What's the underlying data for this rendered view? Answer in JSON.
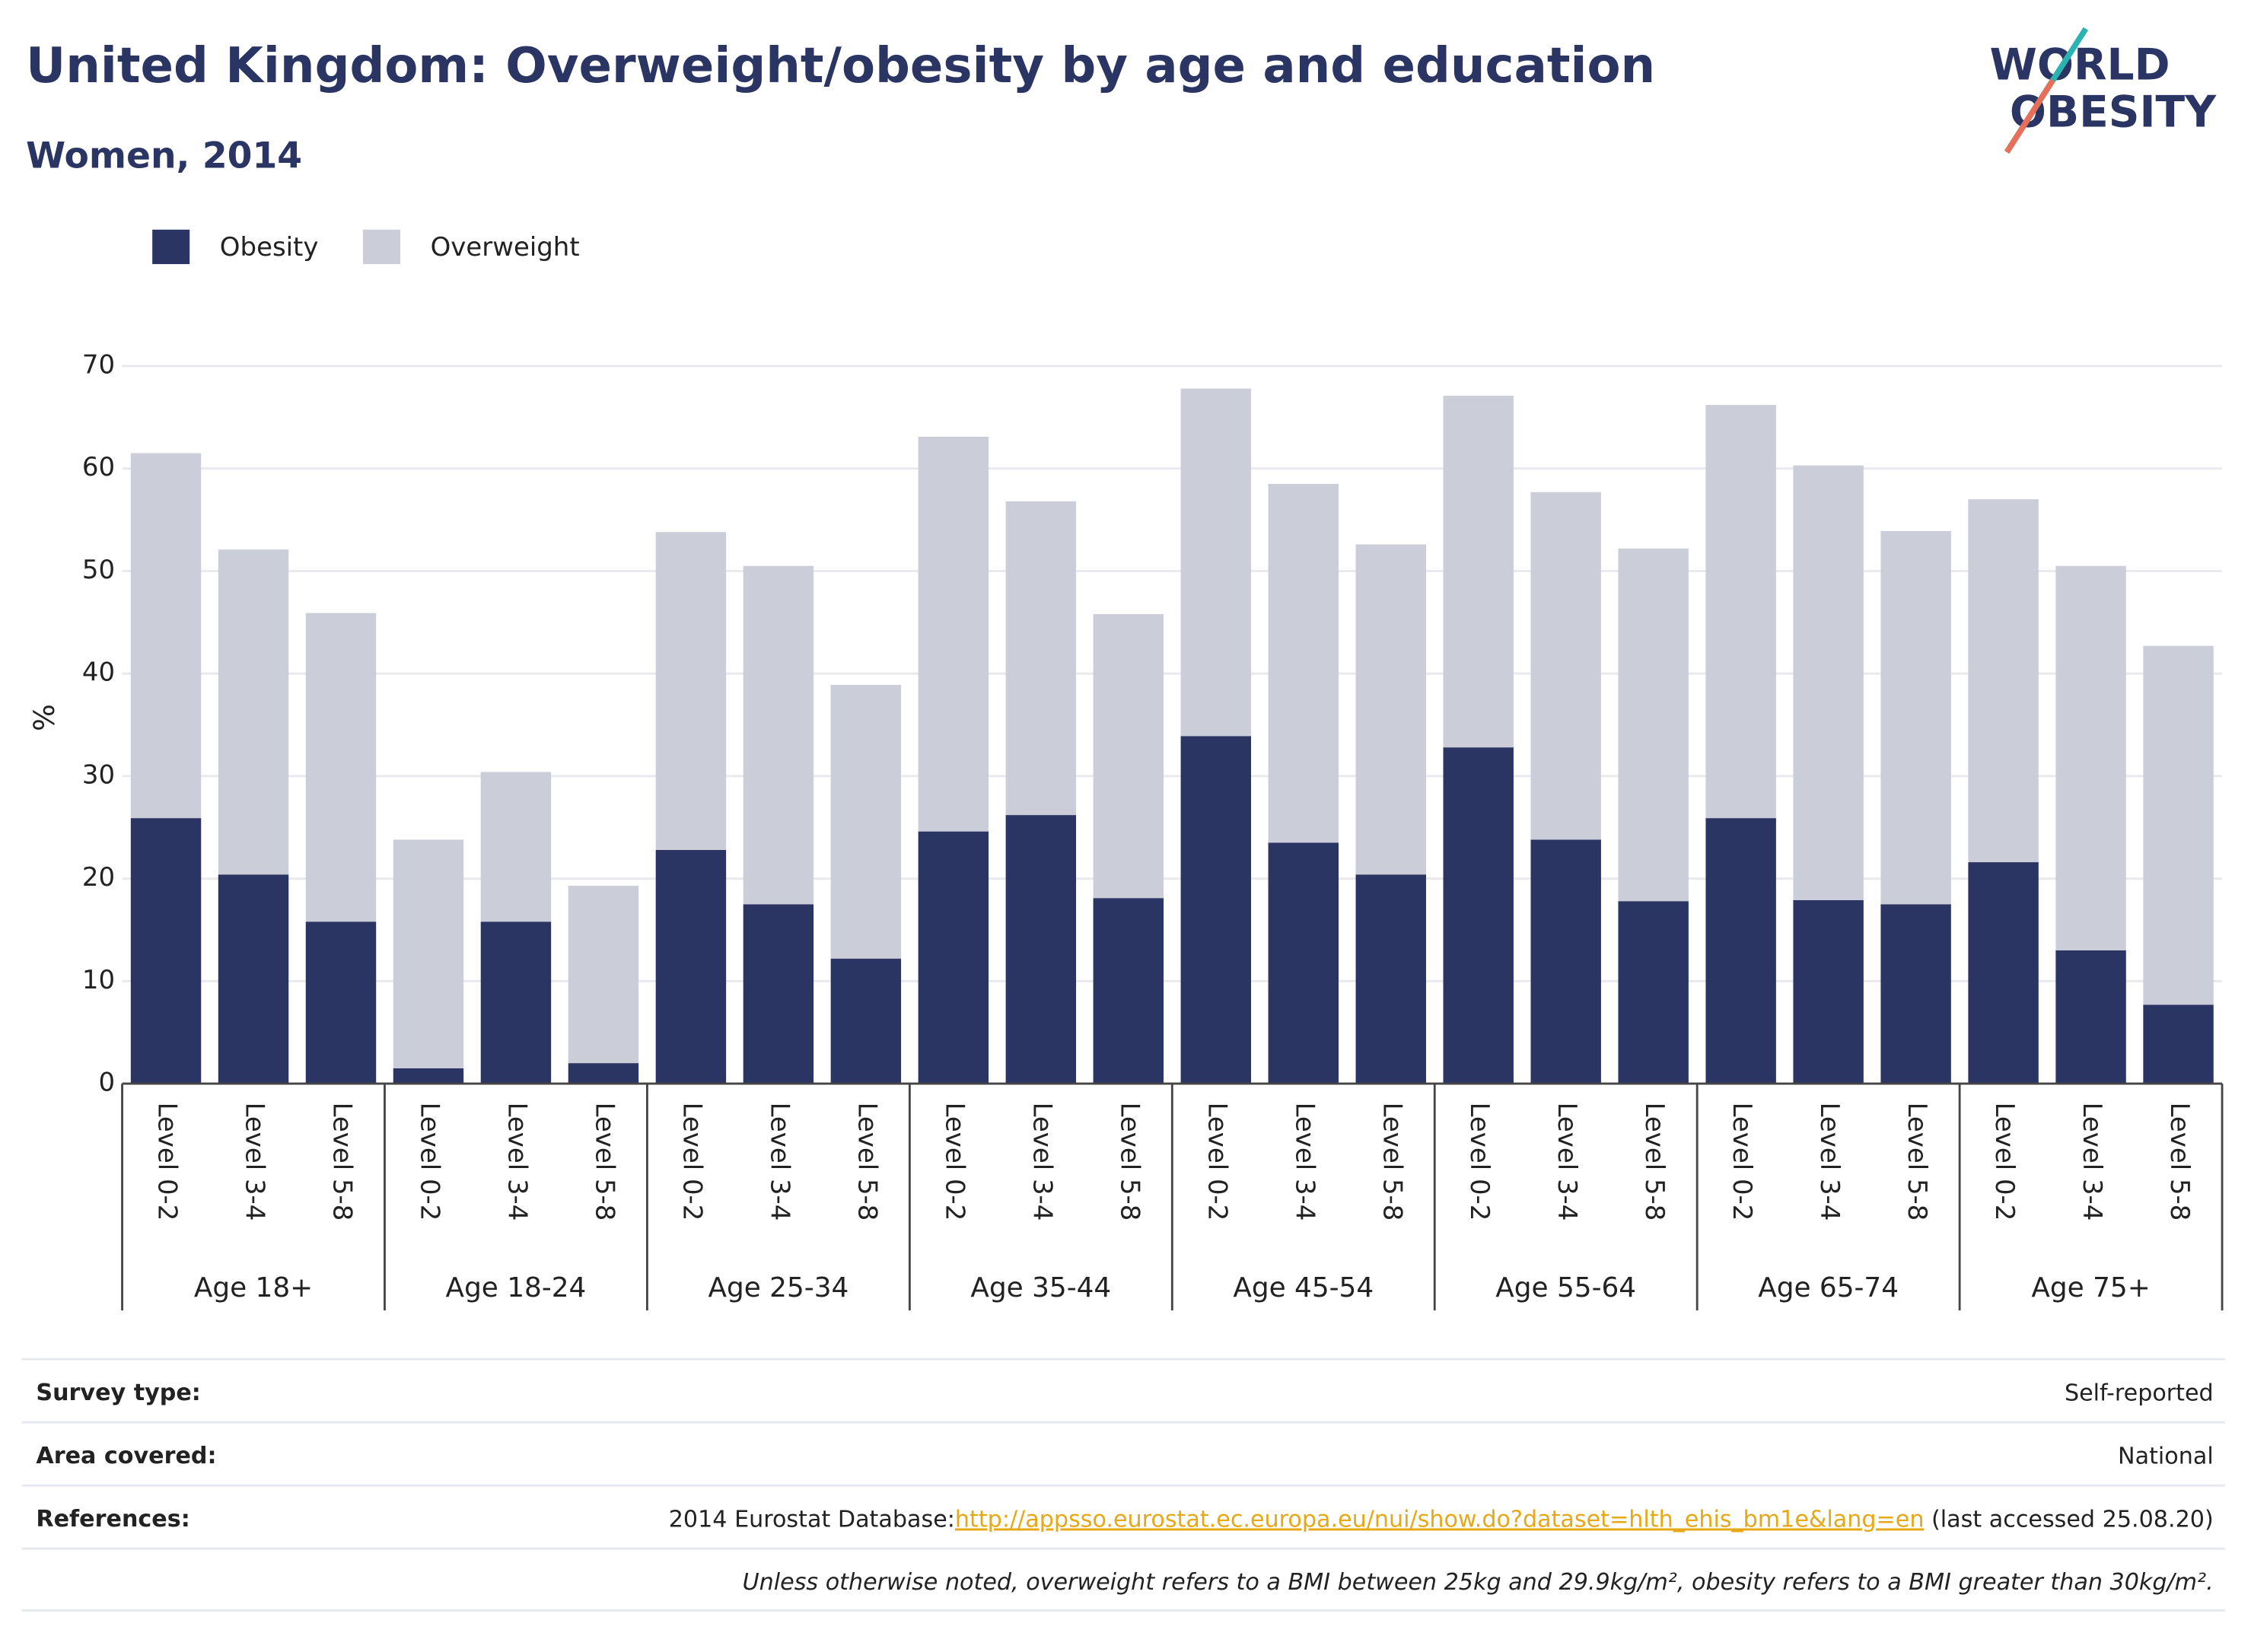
{
  "chart_data": {
    "type": "stacked_bar",
    "title": "United Kingdom: Overweight/obesity by age and education",
    "subtitle": "Women, 2014",
    "logo": [
      "WORLD",
      "OBESITY"
    ],
    "y_label": "%",
    "categories": [
      "Level 0-2",
      "Level 3-4",
      "Level 5-8",
      "Level 0-2",
      "Level 3-4",
      "Level 5-8",
      "Level 0-2",
      "Level 3-4",
      "Level 5-8",
      "Level 0-2",
      "Level 3-4",
      "Level 5-8",
      "Level 0-2",
      "Level 3-4",
      "Level 5-8",
      "Level 0-2",
      "Level 3-4",
      "Level 5-8",
      "Level 0-2",
      "Level 3-4",
      "Level 5-8",
      "Level 0-2",
      "Level 3-4",
      "Level 5-8"
    ],
    "groups": [
      "Age 18+",
      "Age 18-24",
      "Age 25-34",
      "Age 35-44",
      "Age 45-54",
      "Age 55-64",
      "Age 65-74",
      "Age 75+"
    ],
    "series": [
      {
        "name": "Obesity",
        "color": "#2a3563",
        "values": [
          25.9,
          20.4,
          15.8,
          1.5,
          15.8,
          2.0,
          22.8,
          17.5,
          12.2,
          24.6,
          26.2,
          18.1,
          33.9,
          23.5,
          20.4,
          32.8,
          23.8,
          17.8,
          25.9,
          17.9,
          17.5,
          21.6,
          13.0,
          7.7
        ]
      },
      {
        "name": "Overweight",
        "color": "#cbcdd8",
        "values": [
          35.6,
          31.7,
          30.1,
          22.3,
          14.6,
          17.3,
          31.0,
          33.0,
          26.7,
          38.5,
          30.6,
          27.7,
          33.9,
          35.0,
          32.2,
          34.3,
          33.9,
          34.4,
          40.3,
          42.4,
          36.4,
          35.4,
          37.5,
          35.0
        ]
      }
    ],
    "ylim": [
      0,
      70
    ],
    "yticks": [
      0,
      10,
      20,
      30,
      40,
      50,
      60,
      70
    ],
    "grid": true,
    "legend": "top-left",
    "footer": {
      "rows": [
        {
          "label": "Survey type:",
          "value": "Self-reported"
        },
        {
          "label": "Area covered:",
          "value": "National"
        },
        {
          "label": "References:",
          "value": "2014 Eurostat Database:",
          "link": "http://appsso.eurostat.ec.europa.eu/nui/show.do?dataset=hlth_ehis_bm1e&lang=en",
          "after": " (last accessed 25.08.20)"
        }
      ],
      "note": "Unless otherwise noted, overweight refers to a BMI between 25kg and 29.9kg/m², obesity refers to a BMI greater than 30kg/m²."
    }
  }
}
